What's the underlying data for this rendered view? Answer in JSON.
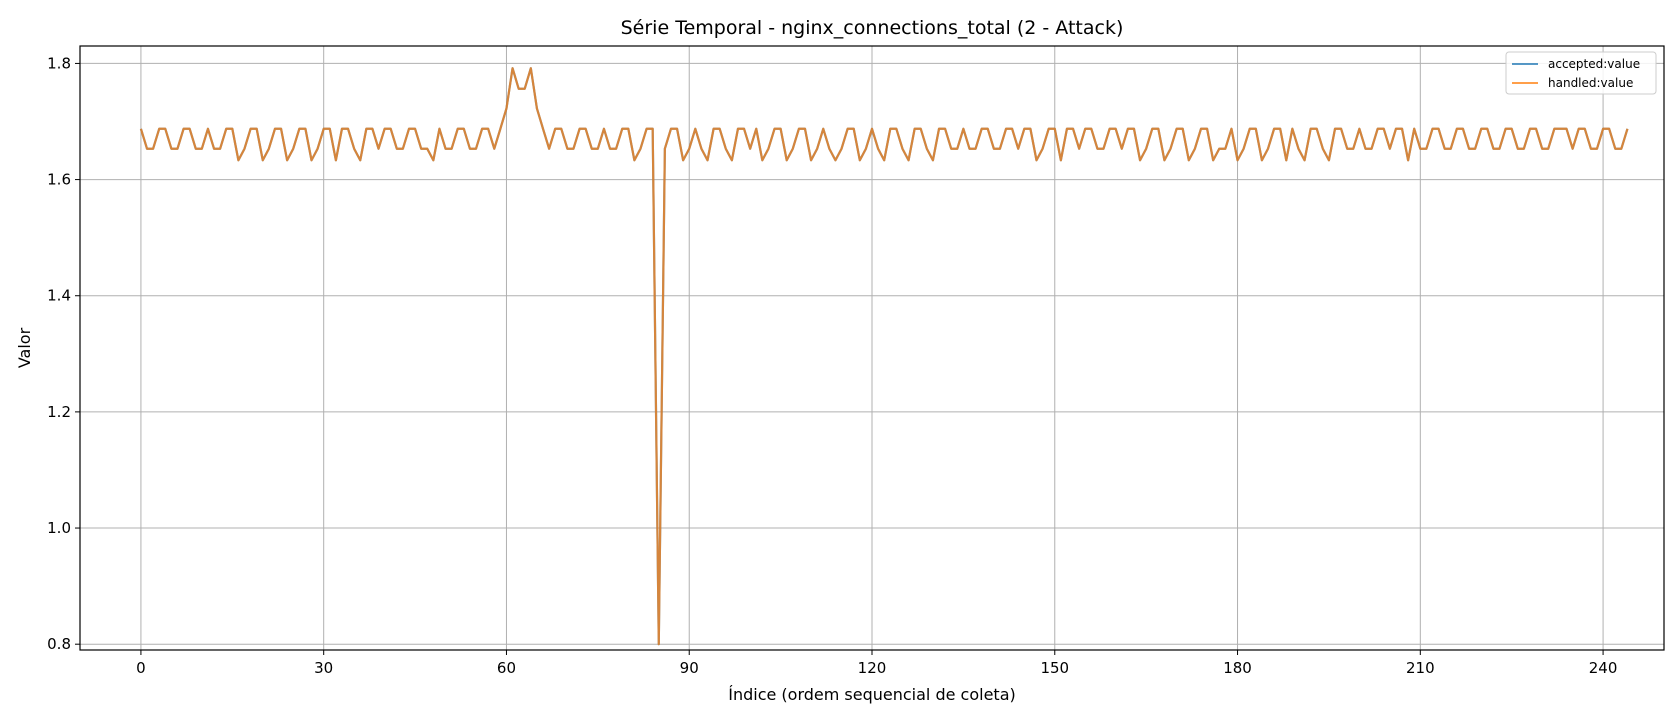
{
  "chart_data": {
    "type": "line",
    "title": "Série Temporal - nginx_connections_total (2 - Attack)",
    "xlabel": "Índice (ordem sequencial de coleta)",
    "ylabel": "Valor",
    "xlim": [
      -10,
      250
    ],
    "ylim": [
      0.79,
      1.83
    ],
    "xticks": [
      0,
      30,
      60,
      90,
      120,
      150,
      180,
      210,
      240
    ],
    "yticks": [
      0.8,
      1.0,
      1.2,
      1.4,
      1.6,
      1.8
    ],
    "ytick_labels": [
      "0.8",
      "1.0",
      "1.2",
      "1.4",
      "1.6",
      "1.8"
    ],
    "grid": true,
    "legend_position": "top-right",
    "series": [
      {
        "name": "accepted:value",
        "color": "#1f77b4",
        "values": [
          1.6875,
          1.6531,
          1.6531,
          1.6875,
          1.6875,
          1.6531,
          1.6531,
          1.6875,
          1.6875,
          1.6531,
          1.6531,
          1.6875,
          1.6531,
          1.6531,
          1.6875,
          1.6875,
          1.6333,
          1.6531,
          1.6875,
          1.6875,
          1.6333,
          1.6531,
          1.6875,
          1.6875,
          1.6333,
          1.6531,
          1.6875,
          1.6875,
          1.6333,
          1.6531,
          1.6875,
          1.6875,
          1.6333,
          1.6875,
          1.6875,
          1.6531,
          1.6333,
          1.6875,
          1.6875,
          1.6531,
          1.6875,
          1.6875,
          1.6531,
          1.6531,
          1.6875,
          1.6875,
          1.6531,
          1.6531,
          1.6333,
          1.6875,
          1.6531,
          1.6531,
          1.6875,
          1.6875,
          1.6531,
          1.6531,
          1.6875,
          1.6875,
          1.6531,
          1.6875,
          1.7225,
          1.7917,
          1.7564,
          1.7564,
          1.7917,
          1.7225,
          1.6875,
          1.6531,
          1.6875,
          1.6875,
          1.6531,
          1.6531,
          1.6875,
          1.6875,
          1.6531,
          1.6531,
          1.6875,
          1.6531,
          1.6531,
          1.6875,
          1.6875,
          1.6333,
          1.6531,
          1.6875,
          1.6875,
          0.8,
          1.6531,
          1.6875,
          1.6875,
          1.6333,
          1.6531,
          1.6875,
          1.6531,
          1.6333,
          1.6875,
          1.6875,
          1.6531,
          1.6333,
          1.6875,
          1.6875,
          1.6531,
          1.6875,
          1.6333,
          1.6531,
          1.6875,
          1.6875,
          1.6333,
          1.6531,
          1.6875,
          1.6875,
          1.6333,
          1.6531,
          1.6875,
          1.6531,
          1.6333,
          1.6531,
          1.6875,
          1.6875,
          1.6333,
          1.6531,
          1.6875,
          1.6531,
          1.6333,
          1.6875,
          1.6875,
          1.6531,
          1.6333,
          1.6875,
          1.6875,
          1.6531,
          1.6333,
          1.6875,
          1.6875,
          1.6531,
          1.6531,
          1.6875,
          1.6531,
          1.6531,
          1.6875,
          1.6875,
          1.6531,
          1.6531,
          1.6875,
          1.6875,
          1.6531,
          1.6875,
          1.6875,
          1.6333,
          1.6531,
          1.6875,
          1.6875,
          1.6333,
          1.6875,
          1.6875,
          1.6531,
          1.6875,
          1.6875,
          1.6531,
          1.6531,
          1.6875,
          1.6875,
          1.6531,
          1.6875,
          1.6875,
          1.6333,
          1.6531,
          1.6875,
          1.6875,
          1.6333,
          1.6531,
          1.6875,
          1.6875,
          1.6333,
          1.6531,
          1.6875,
          1.6875,
          1.6333,
          1.6531,
          1.6531,
          1.6875,
          1.6333,
          1.6531,
          1.6875,
          1.6875,
          1.6333,
          1.6531,
          1.6875,
          1.6875,
          1.6333,
          1.6875,
          1.6531,
          1.6333,
          1.6875,
          1.6875,
          1.6531,
          1.6333,
          1.6875,
          1.6875,
          1.6531,
          1.6531,
          1.6875,
          1.6531,
          1.6531,
          1.6875,
          1.6875,
          1.6531,
          1.6875,
          1.6875,
          1.6333,
          1.6875,
          1.6531,
          1.6531,
          1.6875,
          1.6875,
          1.6531,
          1.6531,
          1.6875,
          1.6875,
          1.6531,
          1.6531,
          1.6875,
          1.6875,
          1.6531,
          1.6531,
          1.6875,
          1.6875,
          1.6531,
          1.6531,
          1.6875,
          1.6875,
          1.6531,
          1.6531,
          1.6875,
          1.6875,
          1.6875,
          1.6531,
          1.6875,
          1.6875,
          1.6531,
          1.6531,
          1.6875,
          1.6875,
          1.6531,
          1.6531,
          1.6875
        ]
      },
      {
        "name": "handled:value",
        "color": "#ff7f0e",
        "values": [
          1.6875,
          1.6531,
          1.6531,
          1.6875,
          1.6875,
          1.6531,
          1.6531,
          1.6875,
          1.6875,
          1.6531,
          1.6531,
          1.6875,
          1.6531,
          1.6531,
          1.6875,
          1.6875,
          1.6333,
          1.6531,
          1.6875,
          1.6875,
          1.6333,
          1.6531,
          1.6875,
          1.6875,
          1.6333,
          1.6531,
          1.6875,
          1.6875,
          1.6333,
          1.6531,
          1.6875,
          1.6875,
          1.6333,
          1.6875,
          1.6875,
          1.6531,
          1.6333,
          1.6875,
          1.6875,
          1.6531,
          1.6875,
          1.6875,
          1.6531,
          1.6531,
          1.6875,
          1.6875,
          1.6531,
          1.6531,
          1.6333,
          1.6875,
          1.6531,
          1.6531,
          1.6875,
          1.6875,
          1.6531,
          1.6531,
          1.6875,
          1.6875,
          1.6531,
          1.6875,
          1.7225,
          1.7917,
          1.7564,
          1.7564,
          1.7917,
          1.7225,
          1.6875,
          1.6531,
          1.6875,
          1.6875,
          1.6531,
          1.6531,
          1.6875,
          1.6875,
          1.6531,
          1.6531,
          1.6875,
          1.6531,
          1.6531,
          1.6875,
          1.6875,
          1.6333,
          1.6531,
          1.6875,
          1.6875,
          0.8,
          1.6531,
          1.6875,
          1.6875,
          1.6333,
          1.6531,
          1.6875,
          1.6531,
          1.6333,
          1.6875,
          1.6875,
          1.6531,
          1.6333,
          1.6875,
          1.6875,
          1.6531,
          1.6875,
          1.6333,
          1.6531,
          1.6875,
          1.6875,
          1.6333,
          1.6531,
          1.6875,
          1.6875,
          1.6333,
          1.6531,
          1.6875,
          1.6531,
          1.6333,
          1.6531,
          1.6875,
          1.6875,
          1.6333,
          1.6531,
          1.6875,
          1.6531,
          1.6333,
          1.6875,
          1.6875,
          1.6531,
          1.6333,
          1.6875,
          1.6875,
          1.6531,
          1.6333,
          1.6875,
          1.6875,
          1.6531,
          1.6531,
          1.6875,
          1.6531,
          1.6531,
          1.6875,
          1.6875,
          1.6531,
          1.6531,
          1.6875,
          1.6875,
          1.6531,
          1.6875,
          1.6875,
          1.6333,
          1.6531,
          1.6875,
          1.6875,
          1.6333,
          1.6875,
          1.6875,
          1.6531,
          1.6875,
          1.6875,
          1.6531,
          1.6531,
          1.6875,
          1.6875,
          1.6531,
          1.6875,
          1.6875,
          1.6333,
          1.6531,
          1.6875,
          1.6875,
          1.6333,
          1.6531,
          1.6875,
          1.6875,
          1.6333,
          1.6531,
          1.6875,
          1.6875,
          1.6333,
          1.6531,
          1.6531,
          1.6875,
          1.6333,
          1.6531,
          1.6875,
          1.6875,
          1.6333,
          1.6531,
          1.6875,
          1.6875,
          1.6333,
          1.6875,
          1.6531,
          1.6333,
          1.6875,
          1.6875,
          1.6531,
          1.6333,
          1.6875,
          1.6875,
          1.6531,
          1.6531,
          1.6875,
          1.6531,
          1.6531,
          1.6875,
          1.6875,
          1.6531,
          1.6875,
          1.6875,
          1.6333,
          1.6875,
          1.6531,
          1.6531,
          1.6875,
          1.6875,
          1.6531,
          1.6531,
          1.6875,
          1.6875,
          1.6531,
          1.6531,
          1.6875,
          1.6875,
          1.6531,
          1.6531,
          1.6875,
          1.6875,
          1.6531,
          1.6531,
          1.6875,
          1.6875,
          1.6531,
          1.6531,
          1.6875,
          1.6875,
          1.6875,
          1.6531,
          1.6875,
          1.6875,
          1.6531,
          1.6531,
          1.6875,
          1.6875,
          1.6531,
          1.6531,
          1.6875
        ]
      }
    ]
  }
}
